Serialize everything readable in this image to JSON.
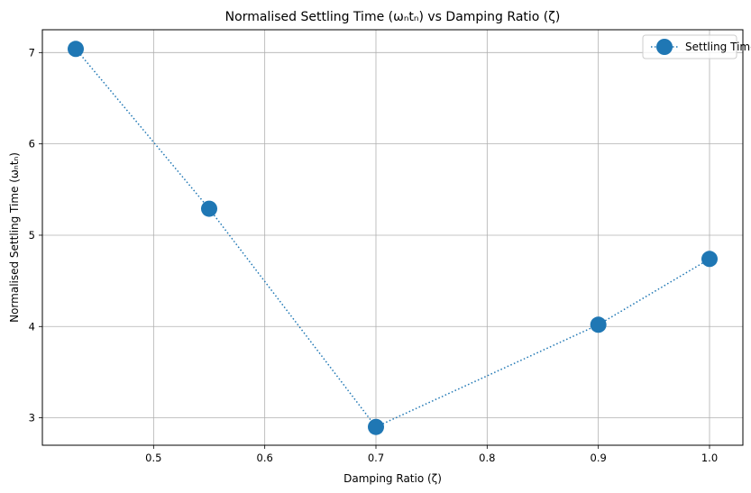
{
  "chart_data": {
    "type": "line",
    "title": "Normalised Settling Time (ωₙtₙ) vs Damping Ratio (ζ)",
    "xlabel": "Damping Ratio (ζ)",
    "ylabel": "Normalised Settling Time (ωₙtₙ)",
    "xlim": [
      0.4,
      1.03
    ],
    "ylim": [
      2.7,
      7.25
    ],
    "x_ticks": [
      0.5,
      0.6,
      0.7,
      0.8,
      0.9,
      1.0
    ],
    "x_tick_labels": [
      "0.5",
      "0.6",
      "0.7",
      "0.8",
      "0.9",
      "1.0"
    ],
    "y_ticks": [
      3,
      4,
      5,
      6,
      7
    ],
    "y_tick_labels": [
      "3",
      "4",
      "5",
      "6",
      "7"
    ],
    "grid": true,
    "legend_position": "top-right",
    "series": [
      {
        "name": "Settling Time",
        "color": "#1f77b4",
        "line_style": "dotted",
        "marker": "circle",
        "x": [
          0.43,
          0.55,
          0.7,
          0.9,
          1.0
        ],
        "y": [
          7.04,
          5.29,
          2.9,
          4.02,
          4.74
        ]
      }
    ]
  }
}
